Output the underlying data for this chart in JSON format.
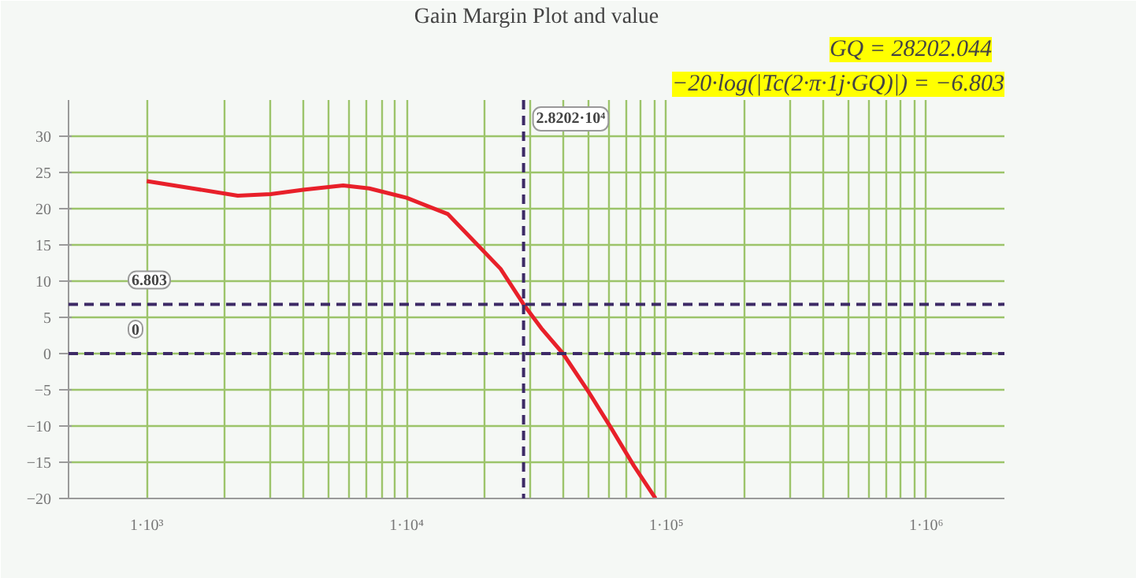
{
  "chart_data": {
    "type": "line",
    "title": "Gain Margin Plot and value",
    "x": [
      1000,
      1500,
      2240,
      3000,
      4000,
      5700,
      7180,
      10000,
      14430,
      18200,
      23000,
      28202,
      33000,
      40000,
      50000,
      61100,
      75000,
      90800
    ],
    "series": [
      {
        "color": "#e8202a",
        "values": [
          23.8,
          22.8,
          21.8,
          22.0,
          22.6,
          23.2,
          22.8,
          21.5,
          19.25,
          15.5,
          11.7,
          6.8,
          3.5,
          0,
          -5.2,
          -10.2,
          -15.5,
          -20
        ]
      }
    ],
    "log": "x",
    "xlim": [
      500,
      2000000
    ],
    "ylim": [
      -20,
      35
    ],
    "xticks": [
      {
        "value": 1000,
        "label": "1·10³"
      },
      {
        "value": 2000,
        "label": null
      },
      {
        "value": 3000,
        "label": null
      },
      {
        "value": 4000,
        "label": null
      },
      {
        "value": 5000,
        "label": null
      },
      {
        "value": 6000,
        "label": null
      },
      {
        "value": 7000,
        "label": null
      },
      {
        "value": 8000,
        "label": null
      },
      {
        "value": 9000,
        "label": null
      },
      {
        "value": 10000,
        "label": "1·10⁴"
      },
      {
        "value": 20000,
        "label": null
      },
      {
        "value": 30000,
        "label": null
      },
      {
        "value": 40000,
        "label": null
      },
      {
        "value": 50000,
        "label": null
      },
      {
        "value": 60000,
        "label": null
      },
      {
        "value": 70000,
        "label": null
      },
      {
        "value": 80000,
        "label": null
      },
      {
        "value": 90000,
        "label": null
      },
      {
        "value": 100000,
        "label": "1·10⁵"
      },
      {
        "value": 200000,
        "label": null
      },
      {
        "value": 300000,
        "label": null
      },
      {
        "value": 400000,
        "label": null
      },
      {
        "value": 500000,
        "label": null
      },
      {
        "value": 600000,
        "label": null
      },
      {
        "value": 700000,
        "label": null
      },
      {
        "value": 800000,
        "label": null
      },
      {
        "value": 900000,
        "label": null
      },
      {
        "value": 1000000,
        "label": "1·10⁶"
      }
    ],
    "yticks": [
      {
        "value": -20,
        "label": "−20"
      },
      {
        "value": -15,
        "label": "−15"
      },
      {
        "value": -10,
        "label": "−10"
      },
      {
        "value": -5,
        "label": "−5"
      },
      0,
      5,
      10,
      15,
      20,
      25,
      30
    ],
    "grid": true,
    "line_style": "solid",
    "marker": "none",
    "ref_lines": [
      {
        "axis": "y",
        "value": 6.803,
        "label": "6.803",
        "color": "#3d2a66",
        "line_style": "dashed"
      },
      {
        "axis": "y",
        "value": 0,
        "label": "0",
        "color": "#3d2a66",
        "line_style": "dashed"
      },
      {
        "axis": "x",
        "value": 28202.044,
        "label": "2.8202·10⁴",
        "color": "#3d2a66",
        "line_style": "dashed"
      }
    ],
    "annotations": [
      "GQ = 28202.044",
      "−20·log(|Tc(2·π·1j·GQ)|) = −6.803"
    ]
  }
}
